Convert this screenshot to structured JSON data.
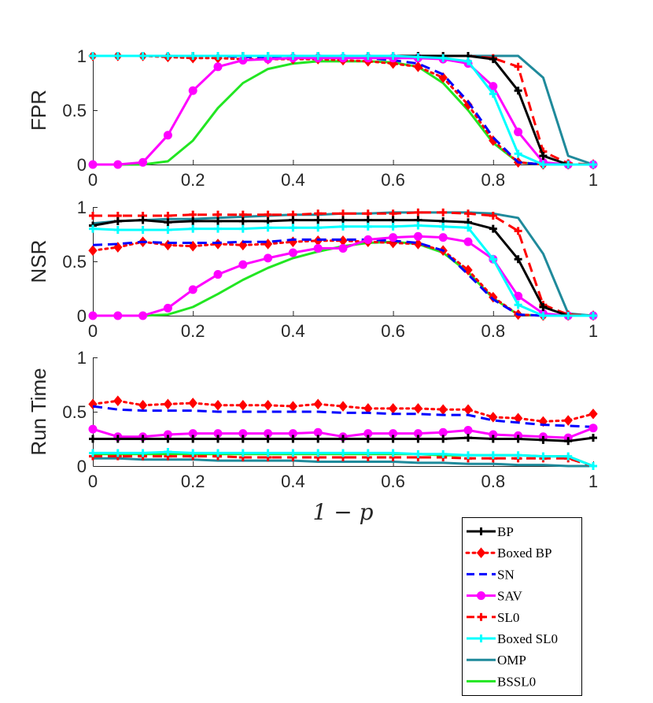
{
  "chart_data": {
    "type": "line",
    "x": [
      0,
      0.05,
      0.1,
      0.15,
      0.2,
      0.25,
      0.3,
      0.35,
      0.4,
      0.45,
      0.5,
      0.55,
      0.6,
      0.65,
      0.7,
      0.75,
      0.8,
      0.85,
      0.9,
      0.95,
      1.0
    ],
    "xlabel": "1 − p",
    "x_ticks": [
      "0",
      "0.2",
      "0.4",
      "0.6",
      "0.8",
      "1"
    ],
    "xlim": [
      0,
      1
    ],
    "legend_position": "bottom-right",
    "series_styles": [
      {
        "name": "BP",
        "color": "#000000",
        "dash": "solid",
        "marker": "plus"
      },
      {
        "name": "Boxed BP",
        "color": "#ff0000",
        "dash": "dotted",
        "marker": "diamond"
      },
      {
        "name": "SN",
        "color": "#0000ff",
        "dash": "dashed",
        "marker": "none"
      },
      {
        "name": "SAV",
        "color": "#ff00ff",
        "dash": "solid",
        "marker": "circle"
      },
      {
        "name": "SL0",
        "color": "#ff0000",
        "dash": "dashed",
        "marker": "plus"
      },
      {
        "name": "Boxed SL0",
        "color": "#00ffff",
        "dash": "solid",
        "marker": "plus"
      },
      {
        "name": "OMP",
        "color": "#1f8a9b",
        "dash": "solid",
        "marker": "none"
      },
      {
        "name": "BSSL0",
        "color": "#22e622",
        "dash": "solid",
        "marker": "none"
      }
    ],
    "panels": [
      {
        "ylabel": "FPR",
        "ylim": [
          0,
          1
        ],
        "y_ticks": [
          "0",
          "0.5",
          "1"
        ],
        "series": [
          {
            "name": "BP",
            "values": [
              1,
              1,
              1,
              1,
              1,
              1,
              1,
              1,
              1,
              1,
              1,
              1,
              1,
              1,
              1,
              1,
              0.97,
              0.68,
              0.08,
              0,
              0
            ]
          },
          {
            "name": "Boxed BP",
            "values": [
              1,
              1,
              1,
              0.99,
              0.98,
              0.98,
              0.97,
              0.97,
              0.97,
              0.97,
              0.96,
              0.95,
              0.93,
              0.9,
              0.8,
              0.55,
              0.22,
              0.02,
              0,
              0,
              0
            ]
          },
          {
            "name": "SN",
            "values": [
              1,
              1,
              1,
              1,
              1,
              1,
              0.99,
              0.99,
              0.99,
              0.99,
              0.99,
              0.98,
              0.96,
              0.93,
              0.83,
              0.58,
              0.25,
              0.02,
              0,
              0,
              0
            ]
          },
          {
            "name": "SAV",
            "values": [
              0,
              0,
              0.02,
              0.27,
              0.68,
              0.9,
              0.96,
              0.97,
              0.98,
              0.98,
              0.98,
              0.98,
              0.98,
              0.98,
              0.97,
              0.93,
              0.72,
              0.3,
              0.02,
              0,
              0
            ]
          },
          {
            "name": "SL0",
            "values": [
              1,
              1,
              1,
              1,
              1,
              1,
              1,
              1,
              1,
              1,
              1,
              1,
              1,
              1,
              1,
              1,
              0.98,
              0.9,
              0.12,
              0.01,
              0
            ]
          },
          {
            "name": "Boxed SL0",
            "values": [
              1,
              1,
              1,
              1,
              1,
              1,
              1,
              1,
              1,
              1,
              1,
              1,
              1,
              0.99,
              0.98,
              0.95,
              0.65,
              0.1,
              0,
              0,
              0
            ]
          },
          {
            "name": "OMP",
            "values": [
              1,
              1,
              1,
              1,
              1,
              1,
              1,
              1,
              1,
              1,
              1,
              1,
              1,
              1,
              1,
              1,
              1,
              1,
              0.8,
              0.08,
              0
            ]
          },
          {
            "name": "BSSL0",
            "values": [
              0,
              0,
              0,
              0.03,
              0.22,
              0.52,
              0.75,
              0.88,
              0.93,
              0.95,
              0.95,
              0.95,
              0.94,
              0.9,
              0.75,
              0.5,
              0.2,
              0.02,
              0,
              0,
              0
            ]
          }
        ]
      },
      {
        "ylabel": "NSR",
        "ylim": [
          0,
          1
        ],
        "y_ticks": [
          "0",
          "0.5",
          "1"
        ],
        "series": [
          {
            "name": "BP",
            "values": [
              0.83,
              0.87,
              0.88,
              0.86,
              0.87,
              0.87,
              0.87,
              0.87,
              0.88,
              0.88,
              0.88,
              0.88,
              0.88,
              0.88,
              0.87,
              0.86,
              0.8,
              0.52,
              0.08,
              0,
              0
            ]
          },
          {
            "name": "Boxed BP",
            "values": [
              0.6,
              0.63,
              0.68,
              0.65,
              0.64,
              0.66,
              0.65,
              0.66,
              0.68,
              0.69,
              0.69,
              0.68,
              0.67,
              0.66,
              0.6,
              0.42,
              0.17,
              0.01,
              0,
              0,
              0
            ]
          },
          {
            "name": "SN",
            "values": [
              0.65,
              0.66,
              0.68,
              0.67,
              0.67,
              0.67,
              0.68,
              0.68,
              0.7,
              0.7,
              0.7,
              0.7,
              0.69,
              0.67,
              0.6,
              0.38,
              0.15,
              0.01,
              0,
              0,
              0
            ]
          },
          {
            "name": "SAV",
            "values": [
              0,
              0,
              0,
              0.07,
              0.24,
              0.38,
              0.47,
              0.53,
              0.58,
              0.62,
              0.62,
              0.7,
              0.72,
              0.73,
              0.72,
              0.68,
              0.52,
              0.18,
              0.02,
              0,
              0
            ]
          },
          {
            "name": "SL0",
            "values": [
              0.92,
              0.92,
              0.92,
              0.92,
              0.93,
              0.93,
              0.93,
              0.93,
              0.93,
              0.94,
              0.94,
              0.94,
              0.94,
              0.95,
              0.95,
              0.94,
              0.92,
              0.78,
              0.1,
              0.01,
              0
            ]
          },
          {
            "name": "Boxed SL0",
            "values": [
              0.8,
              0.79,
              0.79,
              0.79,
              0.8,
              0.8,
              0.8,
              0.81,
              0.81,
              0.81,
              0.82,
              0.82,
              0.82,
              0.83,
              0.82,
              0.81,
              0.52,
              0.1,
              0,
              0,
              0
            ]
          },
          {
            "name": "OMP",
            "values": [
              0.85,
              0.87,
              0.88,
              0.89,
              0.89,
              0.9,
              0.91,
              0.92,
              0.93,
              0.93,
              0.94,
              0.94,
              0.95,
              0.95,
              0.95,
              0.95,
              0.94,
              0.9,
              0.57,
              0.02,
              0
            ]
          },
          {
            "name": "BSSL0",
            "values": [
              0,
              0,
              0,
              0.01,
              0.08,
              0.2,
              0.33,
              0.44,
              0.53,
              0.59,
              0.64,
              0.67,
              0.68,
              0.66,
              0.58,
              0.4,
              0.16,
              0.01,
              0,
              0,
              0
            ]
          }
        ]
      },
      {
        "ylabel": "Run Time",
        "ylim": [
          0,
          1
        ],
        "y_ticks": [
          "0",
          "0.5",
          "1"
        ],
        "series": [
          {
            "name": "BP",
            "values": [
              0.25,
              0.25,
              0.25,
              0.25,
              0.25,
              0.25,
              0.25,
              0.25,
              0.25,
              0.25,
              0.25,
              0.25,
              0.25,
              0.25,
              0.25,
              0.26,
              0.25,
              0.25,
              0.24,
              0.23,
              0.26
            ]
          },
          {
            "name": "Boxed BP",
            "values": [
              0.57,
              0.6,
              0.56,
              0.57,
              0.58,
              0.56,
              0.56,
              0.56,
              0.55,
              0.57,
              0.55,
              0.53,
              0.53,
              0.53,
              0.52,
              0.52,
              0.45,
              0.44,
              0.41,
              0.42,
              0.48
            ]
          },
          {
            "name": "SN",
            "values": [
              0.55,
              0.52,
              0.51,
              0.51,
              0.51,
              0.5,
              0.5,
              0.5,
              0.5,
              0.5,
              0.49,
              0.49,
              0.48,
              0.48,
              0.47,
              0.47,
              0.42,
              0.4,
              0.38,
              0.37,
              0.36
            ]
          },
          {
            "name": "SAV",
            "values": [
              0.34,
              0.27,
              0.27,
              0.29,
              0.3,
              0.3,
              0.3,
              0.3,
              0.3,
              0.31,
              0.27,
              0.3,
              0.3,
              0.3,
              0.31,
              0.33,
              0.29,
              0.28,
              0.27,
              0.26,
              0.35
            ]
          },
          {
            "name": "SL0",
            "values": [
              0.09,
              0.09,
              0.09,
              0.09,
              0.09,
              0.09,
              0.08,
              0.08,
              0.08,
              0.08,
              0.08,
              0.08,
              0.08,
              0.08,
              0.08,
              0.07,
              0.07,
              0.07,
              0.07,
              0.07,
              0
            ]
          },
          {
            "name": "Boxed SL0",
            "values": [
              0.12,
              0.12,
              0.12,
              0.13,
              0.12,
              0.12,
              0.12,
              0.12,
              0.12,
              0.12,
              0.12,
              0.12,
              0.12,
              0.11,
              0.11,
              0.1,
              0.1,
              0.1,
              0.09,
              0.09,
              0
            ]
          },
          {
            "name": "OMP",
            "values": [
              0.07,
              0.07,
              0.06,
              0.06,
              0.06,
              0.05,
              0.05,
              0.05,
              0.05,
              0.04,
              0.04,
              0.04,
              0.04,
              0.03,
              0.03,
              0.02,
              0.02,
              0.01,
              0.01,
              0,
              0
            ]
          },
          {
            "name": "BSSL0",
            "values": [
              0.11,
              0.11,
              0.11,
              0.11,
              0.11,
              0.11,
              0.11,
              0.11,
              0.11,
              0.11,
              0.11,
              0.11,
              0.11,
              0.11,
              0.1,
              0.1,
              0.1,
              0.1,
              0.09,
              0.09,
              0
            ]
          }
        ]
      }
    ]
  }
}
